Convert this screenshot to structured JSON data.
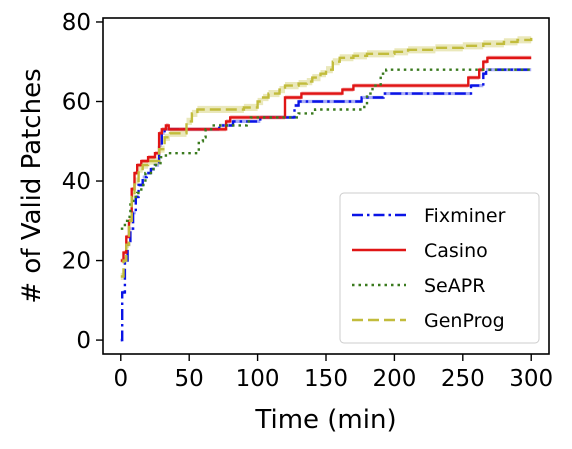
{
  "chart_data": {
    "type": "line",
    "xlabel": "Time (min)",
    "ylabel": "# of Valid Patches",
    "xlim": [
      -13,
      313
    ],
    "ylim": [
      -3.5,
      81
    ],
    "xticks": [
      0,
      50,
      100,
      150,
      200,
      250,
      300
    ],
    "yticks": [
      0,
      20,
      40,
      60,
      80
    ],
    "grid": false,
    "legend": {
      "placement": "lower-right",
      "entries": [
        "Fixminer",
        "Casino",
        "SeAPR",
        "GenProg"
      ]
    },
    "series": [
      {
        "name": "Fixminer",
        "color": "#0a14e6",
        "dash": "dashdot",
        "steps": [
          [
            0,
            0
          ],
          [
            1,
            12
          ],
          [
            3,
            20
          ],
          [
            5,
            24
          ],
          [
            7,
            28
          ],
          [
            9,
            32
          ],
          [
            11,
            36
          ],
          [
            13,
            39
          ],
          [
            16,
            41
          ],
          [
            19,
            42
          ],
          [
            22,
            43
          ],
          [
            25,
            44
          ],
          [
            28,
            49
          ],
          [
            30,
            52
          ],
          [
            32,
            53
          ],
          [
            70,
            53
          ],
          [
            72,
            54
          ],
          [
            80,
            54
          ],
          [
            82,
            55
          ],
          [
            100,
            55
          ],
          [
            102,
            56
          ],
          [
            125,
            56
          ],
          [
            127,
            59
          ],
          [
            130,
            60
          ],
          [
            174,
            60
          ],
          [
            176,
            61
          ],
          [
            190,
            61
          ],
          [
            192,
            62
          ],
          [
            254,
            62
          ],
          [
            256,
            64
          ],
          [
            263,
            64
          ],
          [
            265,
            67
          ],
          [
            267,
            68
          ],
          [
            300,
            68
          ]
        ],
        "band": 0.4
      },
      {
        "name": "Casino",
        "color": "#e01515",
        "dash": "solid",
        "steps": [
          [
            0,
            20
          ],
          [
            2,
            22
          ],
          [
            4,
            26
          ],
          [
            6,
            30
          ],
          [
            8,
            38
          ],
          [
            10,
            42
          ],
          [
            12,
            44
          ],
          [
            15,
            45
          ],
          [
            20,
            46
          ],
          [
            25,
            47
          ],
          [
            28,
            52
          ],
          [
            30,
            53
          ],
          [
            33,
            54
          ],
          [
            35,
            53
          ],
          [
            75,
            53
          ],
          [
            77,
            55
          ],
          [
            80,
            56
          ],
          [
            118,
            56
          ],
          [
            120,
            61
          ],
          [
            130,
            61
          ],
          [
            132,
            62
          ],
          [
            160,
            62
          ],
          [
            162,
            63
          ],
          [
            170,
            64
          ],
          [
            252,
            64
          ],
          [
            254,
            66
          ],
          [
            260,
            66
          ],
          [
            262,
            68
          ],
          [
            265,
            70
          ],
          [
            268,
            71
          ],
          [
            300,
            71
          ]
        ],
        "band": 0.5
      },
      {
        "name": "SeAPR",
        "color": "#3a7a1e",
        "dash": "dotted",
        "steps": [
          [
            0,
            28
          ],
          [
            3,
            30
          ],
          [
            5,
            31
          ],
          [
            7,
            35
          ],
          [
            10,
            36
          ],
          [
            12,
            37
          ],
          [
            15,
            39
          ],
          [
            18,
            42
          ],
          [
            22,
            43
          ],
          [
            25,
            44
          ],
          [
            27,
            44
          ],
          [
            29,
            46
          ],
          [
            33,
            47
          ],
          [
            55,
            47
          ],
          [
            57,
            50
          ],
          [
            60,
            51
          ],
          [
            62,
            53
          ],
          [
            66,
            54
          ],
          [
            90,
            54
          ],
          [
            92,
            55
          ],
          [
            95,
            56
          ],
          [
            128,
            56
          ],
          [
            130,
            57
          ],
          [
            140,
            57
          ],
          [
            142,
            58
          ],
          [
            175,
            58
          ],
          [
            178,
            59
          ],
          [
            180,
            62
          ],
          [
            184,
            64
          ],
          [
            190,
            67
          ],
          [
            194,
            68
          ],
          [
            300,
            68
          ]
        ],
        "band": 0
      },
      {
        "name": "GenProg",
        "color": "#c2bc3c",
        "dash": "dashed",
        "steps": [
          [
            0,
            16
          ],
          [
            2,
            20
          ],
          [
            4,
            24
          ],
          [
            6,
            30
          ],
          [
            8,
            36
          ],
          [
            10,
            40
          ],
          [
            13,
            43
          ],
          [
            16,
            44
          ],
          [
            20,
            45
          ],
          [
            24,
            45
          ],
          [
            28,
            48
          ],
          [
            32,
            51
          ],
          [
            36,
            52
          ],
          [
            44,
            52
          ],
          [
            48,
            55
          ],
          [
            52,
            57
          ],
          [
            56,
            58
          ],
          [
            80,
            58
          ],
          [
            90,
            58.5
          ],
          [
            100,
            60
          ],
          [
            104,
            61
          ],
          [
            108,
            62
          ],
          [
            112,
            62
          ],
          [
            116,
            63
          ],
          [
            120,
            64
          ],
          [
            130,
            64.5
          ],
          [
            136,
            65
          ],
          [
            140,
            66
          ],
          [
            146,
            67
          ],
          [
            150,
            68
          ],
          [
            155,
            70
          ],
          [
            160,
            71
          ],
          [
            170,
            71.5
          ],
          [
            180,
            72
          ],
          [
            200,
            72.5
          ],
          [
            210,
            73
          ],
          [
            230,
            73.5
          ],
          [
            250,
            74
          ],
          [
            265,
            74.5
          ],
          [
            280,
            75
          ],
          [
            290,
            75.5
          ],
          [
            300,
            76
          ]
        ],
        "band": 0.9
      }
    ]
  }
}
